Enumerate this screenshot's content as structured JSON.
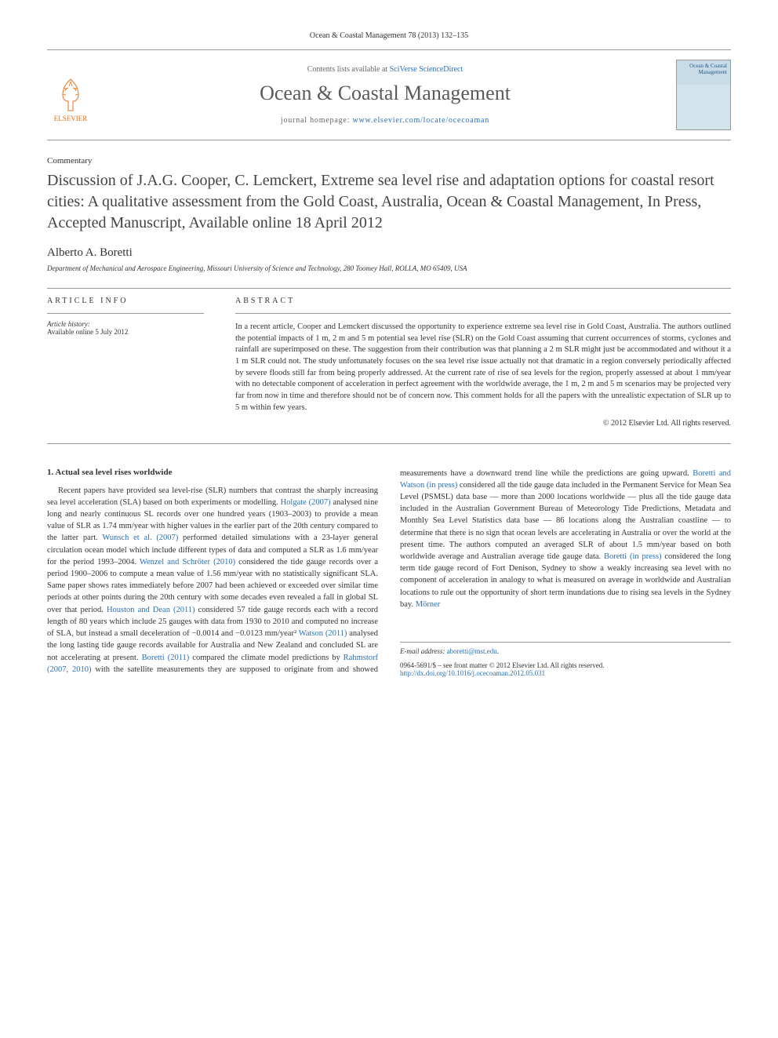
{
  "header": {
    "citation": "Ocean & Coastal Management 78 (2013) 132–135"
  },
  "masthead": {
    "publisher": "ELSEVIER",
    "publisher_color": "#e9711c",
    "contents_prefix": "Contents lists available at ",
    "contents_link": "SciVerse ScienceDirect",
    "journal_name": "Ocean & Coastal Management",
    "homepage_prefix": "journal homepage: ",
    "homepage_url": "www.elsevier.com/locate/ocecoaman",
    "cover_text": "Ocean & Coastal Management"
  },
  "article": {
    "type": "Commentary",
    "title": "Discussion of J.A.G. Cooper, C. Lemckert, Extreme sea level rise and adaptation options for coastal resort cities: A qualitative assessment from the Gold Coast, Australia, Ocean & Coastal Management, In Press, Accepted Manuscript, Available online 18 April 2012",
    "author": "Alberto A. Boretti",
    "affiliation": "Department of Mechanical and Aerospace Engineering, Missouri University of Science and Technology, 280 Toomey Hall, ROLLA, MO 65409, USA"
  },
  "info": {
    "heading": "ARTICLE INFO",
    "history_label": "Article history:",
    "history_value": "Available online 5 July 2012"
  },
  "abstract": {
    "heading": "ABSTRACT",
    "text": "In a recent article, Cooper and Lemckert discussed the opportunity to experience extreme sea level rise in Gold Coast, Australia. The authors outlined the potential impacts of 1 m, 2 m and 5 m potential sea level rise (SLR) on the Gold Coast assuming that current occurrences of storms, cyclones and rainfall are superimposed on these. The suggestion from their contribution was that planning a 2 m SLR might just be accommodated and without it a 1 m SLR could not. The study unfortunately focuses on the sea level rise issue actually not that dramatic in a region conversely periodically affected by severe floods still far from being properly addressed. At the current rate of rise of sea levels for the region, properly assessed at about 1 mm/year with no detectable component of acceleration in perfect agreement with the worldwide average, the 1 m, 2 m and 5 m scenarios may be projected very far from now in time and therefore should not be of concern now. This comment holds for all the papers with the unrealistic expectation of SLR up to 5 m within few years.",
    "copyright": "© 2012 Elsevier Ltd. All rights reserved."
  },
  "body": {
    "section1_heading": "1. Actual sea level rises worldwide",
    "para1_parts": [
      {
        "t": "Recent papers have provided sea level-rise (SLR) numbers that contrast the sharply increasing sea level acceleration (SLA) based on both experiments or modelling. "
      },
      {
        "t": "Holgate (2007)",
        "cite": true
      },
      {
        "t": " analysed nine long and nearly continuous SL records over one hundred years (1903–2003) to provide a mean value of SLR as 1.74 mm/year with higher values in the earlier part of the 20th century compared to the latter part. "
      },
      {
        "t": "Wunsch et al. (2007)",
        "cite": true
      },
      {
        "t": " performed detailed simulations with a 23-layer general circulation ocean model which include different types of data and computed a SLR as 1.6 mm/year for the period 1993–2004. "
      },
      {
        "t": "Wenzel and Schröter (2010)",
        "cite": true
      },
      {
        "t": " considered the tide gauge records over a period 1900–2006 to compute a mean value of 1.56 mm/year with no statistically significant SLA. Same paper shows rates immediately before 2007 had been achieved or exceeded over similar time periods at other points during the 20th century with some decades even revealed a fall in global SL over that period. "
      },
      {
        "t": "Houston and Dean (2011)",
        "cite": true
      },
      {
        "t": " considered 57 tide gauge records each with a record length of 80 years which include 25 gauges with data from 1930 to 2010 and computed no increase of SLA, but instead a small deceleration of −0.0014 and −0.0123 mm/year² "
      },
      {
        "t": "Watson (2011)",
        "cite": true
      },
      {
        "t": " analysed the long lasting tide gauge records available for Australia and New Zealand and concluded SL are not accelerating at present. "
      },
      {
        "t": "Boretti (2011)",
        "cite": true
      },
      {
        "t": " compared the climate model predictions by "
      },
      {
        "t": "Rahmstorf (2007, 2010)",
        "cite": true
      },
      {
        "t": " with the satellite measurements they are supposed to originate from and showed measurements have a downward trend line while the predictions are going upward. "
      },
      {
        "t": "Boretti and Watson (in press)",
        "cite": true
      },
      {
        "t": " considered all the tide gauge data included in the Permanent Service for Mean Sea Level (PSMSL) data base — more than 2000 locations worldwide — plus all the tide gauge data included in the Australian Government Bureau of Meteorology Tide Predictions, Metadata and Monthly Sea Level Statistics data base — 86 locations along the Australian coastline — to determine that there is no sign that ocean levels are accelerating in Australia or over the world at the present time. The authors computed an averaged SLR of about 1.5 mm/year based on both worldwide average and Australian average tide gauge data. "
      },
      {
        "t": "Boretti (in press)",
        "cite": true
      },
      {
        "t": " considered the long term tide gauge record of Fort Denison, Sydney to show a weakly increasing sea level with no component of acceleration in analogy to what is measured on average in worldwide and Australian locations to rule out the opportunity of short term inundations due to rising sea levels in the Sydney bay. "
      },
      {
        "t": "Mörner",
        "cite": true
      }
    ]
  },
  "footnotes": {
    "email_label": "E-mail address: ",
    "email": "aboretti@mst.edu",
    "front_matter": "0964-5691/$ – see front matter © 2012 Elsevier Ltd. All rights reserved.",
    "doi": "http://dx.doi.org/10.1016/j.ocecoaman.2012.05.031"
  },
  "colors": {
    "link": "#2a6fb5",
    "publisher": "#e9711c",
    "text": "#333333",
    "rule": "#999999"
  }
}
